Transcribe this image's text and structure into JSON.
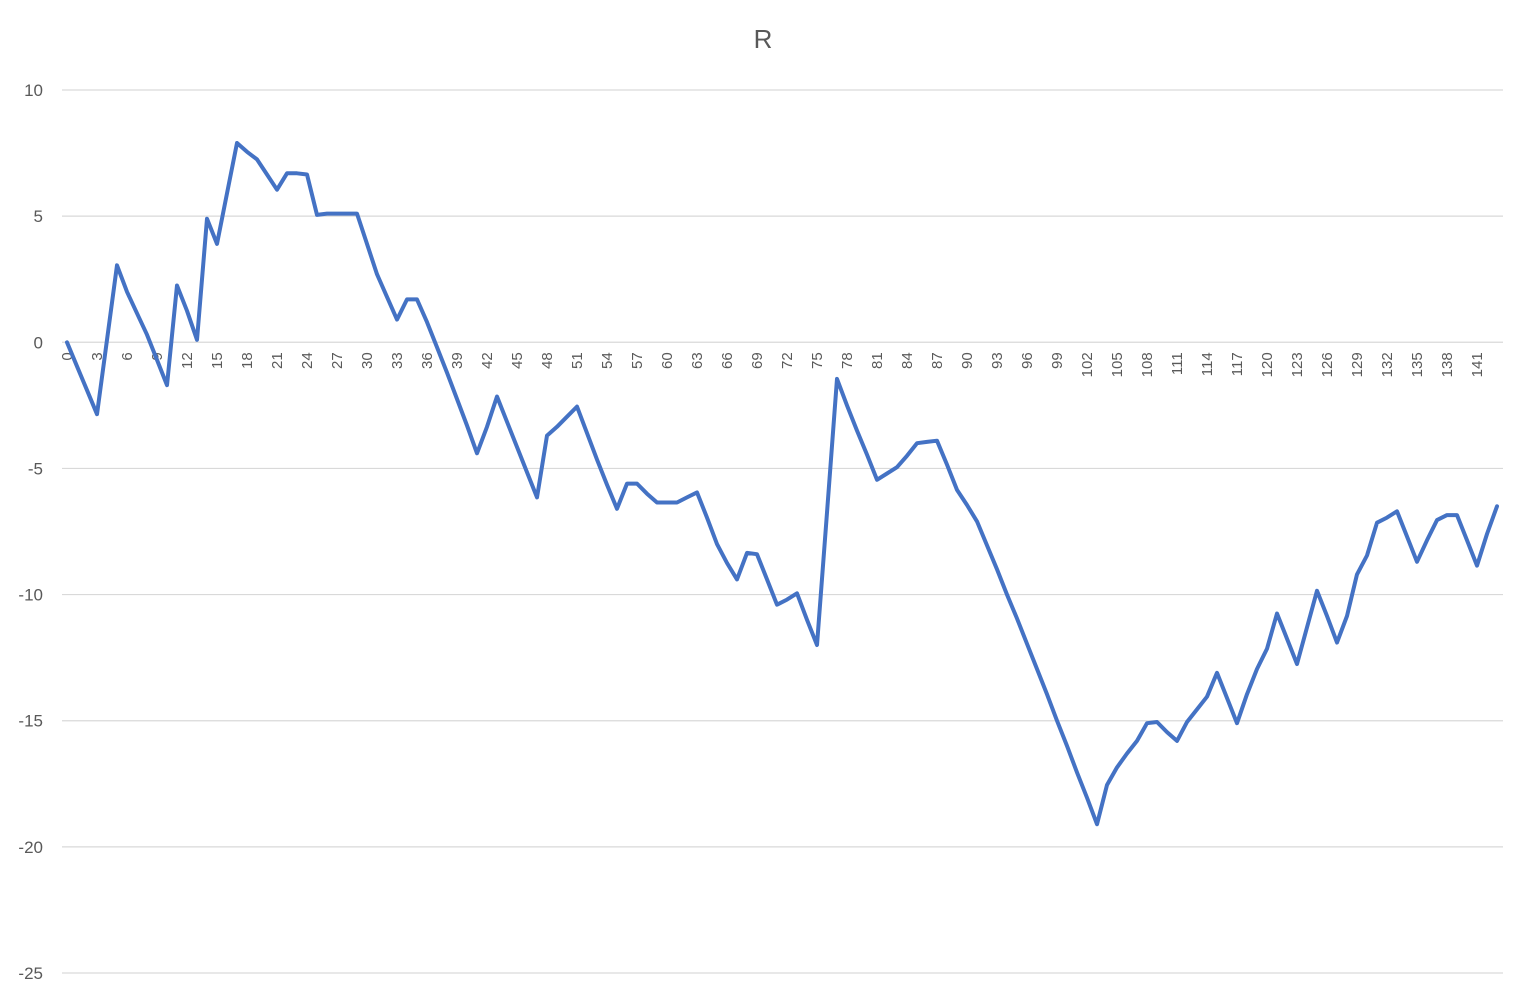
{
  "chart_data": {
    "type": "line",
    "title": "R",
    "xlabel": "",
    "ylabel": "",
    "ylim": [
      -25,
      10
    ],
    "yticks": [
      10,
      5,
      0,
      -5,
      -10,
      -15,
      -20,
      -25
    ],
    "y_tick_labels": [
      "10",
      "5",
      "0",
      "-5",
      "-10",
      "-15",
      "-20",
      "-25"
    ],
    "x_tick_labels": [
      "0",
      "3",
      "6",
      "9",
      "12",
      "15",
      "18",
      "21",
      "24",
      "27",
      "30",
      "33",
      "36",
      "39",
      "42",
      "45",
      "48",
      "51",
      "54",
      "57",
      "60",
      "63",
      "66",
      "69",
      "72",
      "75",
      "78",
      "81",
      "84",
      "87",
      "90",
      "93",
      "96",
      "99",
      "102",
      "105",
      "108",
      "111",
      "114",
      "117",
      "120",
      "123",
      "126",
      "129",
      "132",
      "135",
      "138",
      "141"
    ],
    "grid": true,
    "legend": "none",
    "x": [
      0,
      1,
      2,
      3,
      4,
      5,
      6,
      7,
      8,
      9,
      10,
      11,
      12,
      13,
      14,
      15,
      16,
      17,
      18,
      19,
      20,
      21,
      22,
      23,
      24,
      25,
      26,
      27,
      28,
      29,
      30,
      31,
      32,
      33,
      34,
      35,
      36,
      37,
      38,
      39,
      40,
      41,
      42,
      43,
      44,
      45,
      46,
      47,
      48,
      49,
      50,
      51,
      52,
      53,
      54,
      55,
      56,
      57,
      58,
      59,
      60,
      61,
      62,
      63,
      64,
      65,
      66,
      67,
      68,
      69,
      70,
      71,
      72,
      73,
      74,
      75,
      76,
      77,
      78,
      79,
      80,
      81,
      82,
      83,
      84,
      85,
      86,
      87,
      88,
      89,
      90,
      91,
      92,
      93,
      94,
      95,
      96,
      97,
      98,
      99,
      100,
      101,
      102,
      103,
      104,
      105,
      106,
      107,
      108,
      109,
      110,
      111,
      112,
      113,
      114,
      115,
      116,
      117,
      118,
      119,
      120,
      121,
      122,
      123,
      124,
      125,
      126,
      127,
      128,
      129,
      130,
      131,
      132,
      133,
      134,
      135,
      136,
      137,
      138,
      139,
      140,
      141,
      142,
      143
    ],
    "series": [
      {
        "color": "#4472c4",
        "values": [
          0,
          -0.95,
          -1.9,
          -2.85,
          0.1,
          3.05,
          2.0,
          1.15,
          0.3,
          -0.7,
          -1.7,
          2.25,
          1.25,
          0.1,
          4.9,
          3.9,
          5.9,
          7.9,
          7.55,
          7.25,
          6.65,
          6.05,
          6.7,
          6.7,
          6.65,
          5.05,
          5.1,
          5.1,
          5.1,
          5.1,
          3.9,
          2.7,
          1.8,
          0.9,
          1.7,
          1.7,
          0.8,
          -0.2,
          -1.2,
          -2.25,
          -3.3,
          -4.4,
          -3.35,
          -2.15,
          -3.15,
          -4.15,
          -5.15,
          -6.15,
          -3.7,
          -3.35,
          -2.95,
          -2.55,
          -3.6,
          -4.65,
          -5.65,
          -6.6,
          -5.6,
          -5.6,
          -6.0,
          -6.35,
          -6.35,
          -6.35,
          -6.15,
          -5.95,
          -6.95,
          -8.0,
          -8.75,
          -9.4,
          -8.35,
          -8.4,
          -9.4,
          -10.4,
          -10.2,
          -9.95,
          -11.0,
          -12.0,
          -6.75,
          -1.45,
          -2.5,
          -3.5,
          -4.45,
          -5.45,
          -5.2,
          -4.95,
          -4.5,
          -4.0,
          -3.95,
          -3.9,
          -4.85,
          -5.85,
          -6.45,
          -7.1,
          -8.05,
          -9.0,
          -10.0,
          -10.95,
          -11.95,
          -12.95,
          -13.95,
          -15.0,
          -16.0,
          -17.05,
          -18.05,
          -19.1,
          -17.55,
          -16.85,
          -16.3,
          -15.8,
          -15.1,
          -15.05,
          -15.45,
          -15.8,
          -15.05,
          -14.55,
          -14.05,
          -13.1,
          -14.1,
          -15.1,
          -13.95,
          -12.95,
          -12.15,
          -10.75,
          -11.75,
          -12.75,
          -11.3,
          -9.85,
          -10.85,
          -11.9,
          -10.85,
          -9.2,
          -8.45,
          -7.15,
          -6.95,
          -6.7,
          -7.7,
          -8.7,
          -7.85,
          -7.05,
          -6.85,
          -6.85,
          -7.85,
          -8.85,
          -7.6,
          -6.5
        ]
      }
    ]
  }
}
